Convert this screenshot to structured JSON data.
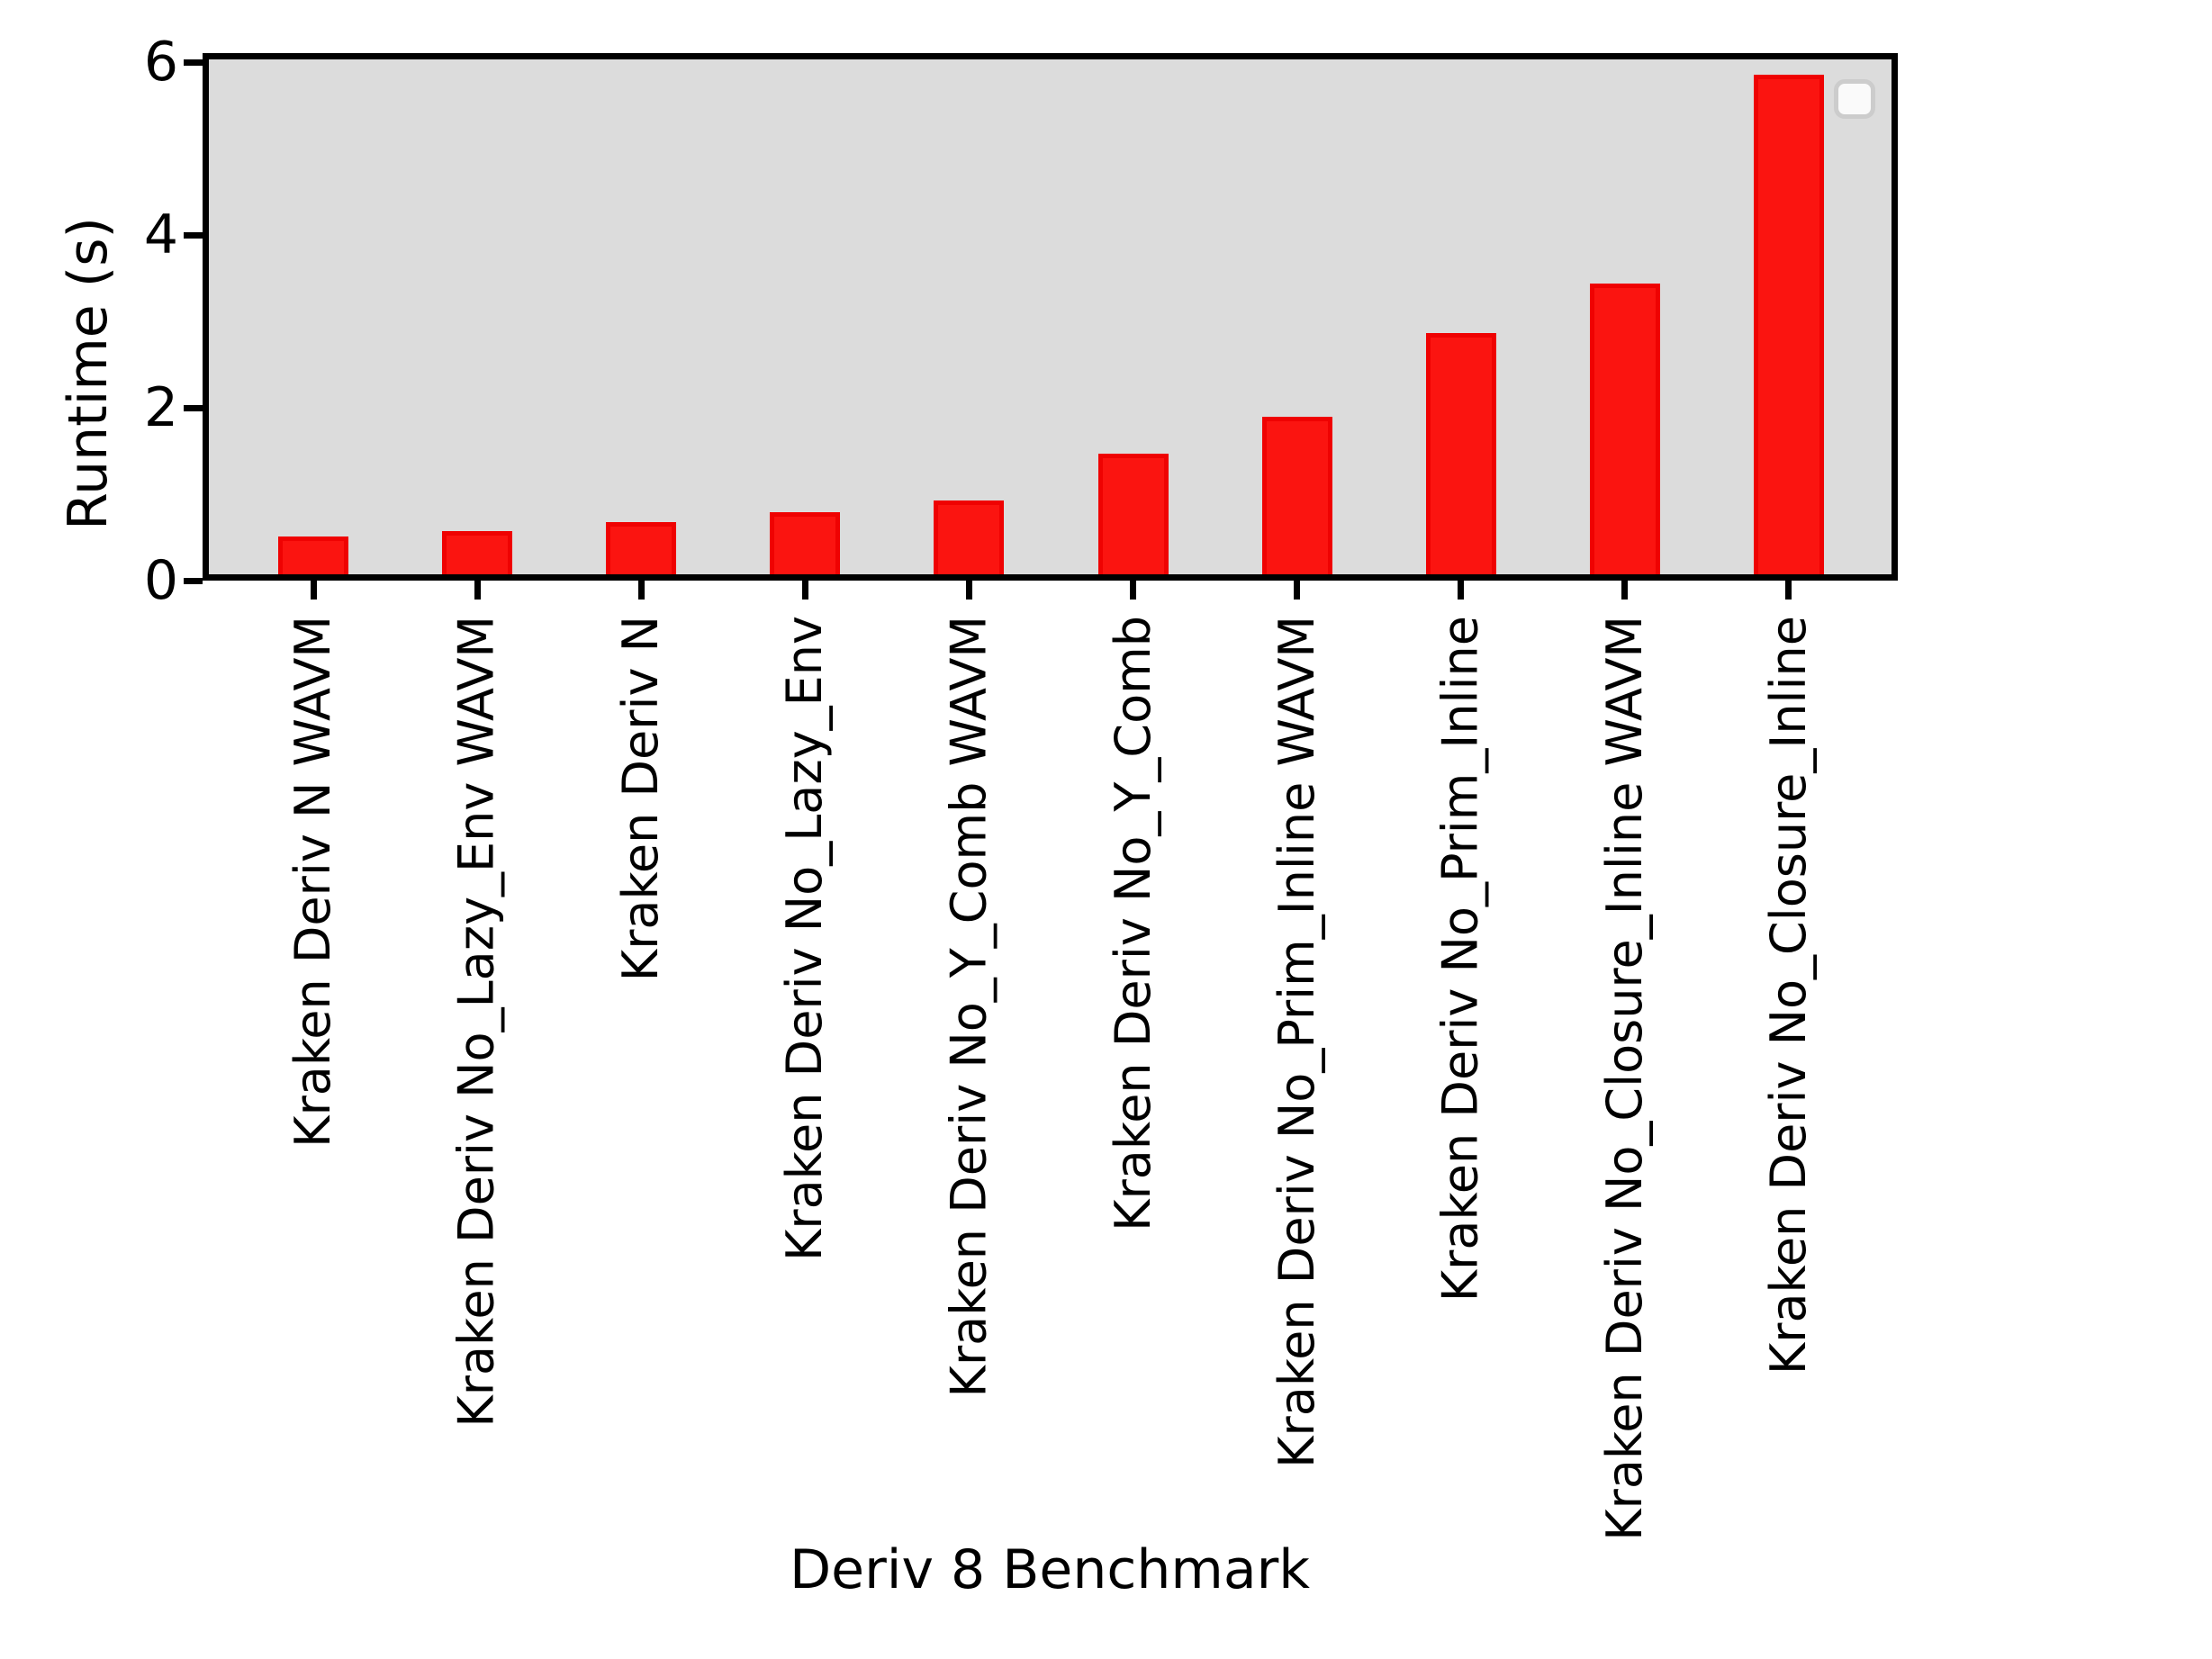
{
  "chart_data": {
    "type": "bar",
    "title": "",
    "xlabel": "Deriv 8 Benchmark",
    "ylabel": "Runtime (s)",
    "categories": [
      "Kraken Deriv N WAVM",
      "Kraken Deriv No_Lazy_Env WAVM",
      "Kraken Deriv N",
      "Kraken Deriv No_Lazy_Env",
      "Kraken Deriv No_Y_Comb WAVM",
      "Kraken Deriv No_Y_Comb",
      "Kraken Deriv No_Prim_Inline WAVM",
      "Kraken Deriv No_Prim_Inline",
      "Kraken Deriv No_Closure_Inline WAVM",
      "Kraken Deriv No_Closure_Inline"
    ],
    "values": [
      0.44,
      0.5,
      0.6,
      0.72,
      0.85,
      1.4,
      1.82,
      2.79,
      3.36,
      5.78
    ],
    "yticks": [
      0,
      2,
      4,
      6
    ],
    "ylim": [
      0,
      6.1
    ],
    "grid": false,
    "legend_position": "upper right",
    "legend_items": [],
    "bar_color": "#fb1410",
    "bar_edge_color": "#ef0202",
    "plot_background": "#dcdcdc",
    "figure_background": "#ffffff",
    "spine_color": "#000000"
  }
}
